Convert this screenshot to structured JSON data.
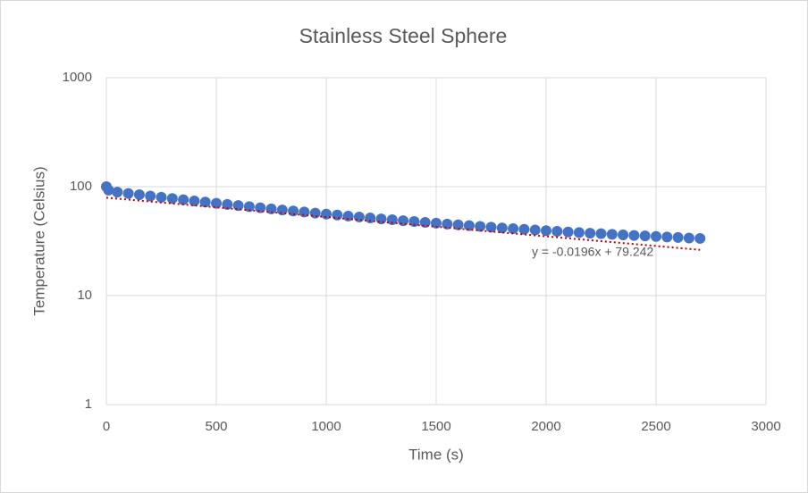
{
  "chart_data": {
    "type": "scatter",
    "title": "Stainless Steel Sphere",
    "x_label": "Time (s)",
    "y_label": "Temperature (Celsius)",
    "annotation": "y = -0.0196x + 79.242",
    "y_log": true,
    "grid": true,
    "xlim": [
      0,
      3000
    ],
    "xticks": [
      0,
      500,
      1000,
      1500,
      2000,
      2500,
      3000
    ],
    "ylim": [
      1,
      1000
    ],
    "yticks": [
      1,
      10,
      100,
      1000
    ],
    "series": [
      {
        "color": "#4472c4",
        "x": [
          0,
          10,
          50,
          100,
          150,
          200,
          250,
          300,
          350,
          400,
          450,
          500,
          550,
          600,
          650,
          700,
          750,
          800,
          850,
          900,
          950,
          1000,
          1050,
          1100,
          1150,
          1200,
          1250,
          1300,
          1350,
          1400,
          1450,
          1500,
          1550,
          1600,
          1650,
          1700,
          1750,
          1800,
          1850,
          1900,
          1950,
          2000,
          2050,
          2100,
          2150,
          2200,
          2250,
          2300,
          2350,
          2400,
          2450,
          2500,
          2550,
          2600,
          2650,
          2700
        ],
        "values": [
          100,
          93,
          89.0,
          86.6,
          84.3,
          82.1,
          80.0,
          77.9,
          75.9,
          74.0,
          72.2,
          70.4,
          68.7,
          67.1,
          65.5,
          64.0,
          62.5,
          61.1,
          59.8,
          58.5,
          57.2,
          56.0,
          54.9,
          53.7,
          52.7,
          51.6,
          50.6,
          49.7,
          48.7,
          47.9,
          47.0,
          46.2,
          45.4,
          44.6,
          43.9,
          43.2,
          42.5,
          41.8,
          41.2,
          40.6,
          40.0,
          39.5,
          38.9,
          38.4,
          37.9,
          37.4,
          37.0,
          36.5,
          36.1,
          35.7,
          35.3,
          34.9,
          34.5,
          34.2,
          33.8,
          33.5
        ]
      }
    ],
    "trendline": {
      "color": "#c00000",
      "x": [
        0,
        2700
      ],
      "values": [
        79.2,
        26.3
      ]
    }
  }
}
